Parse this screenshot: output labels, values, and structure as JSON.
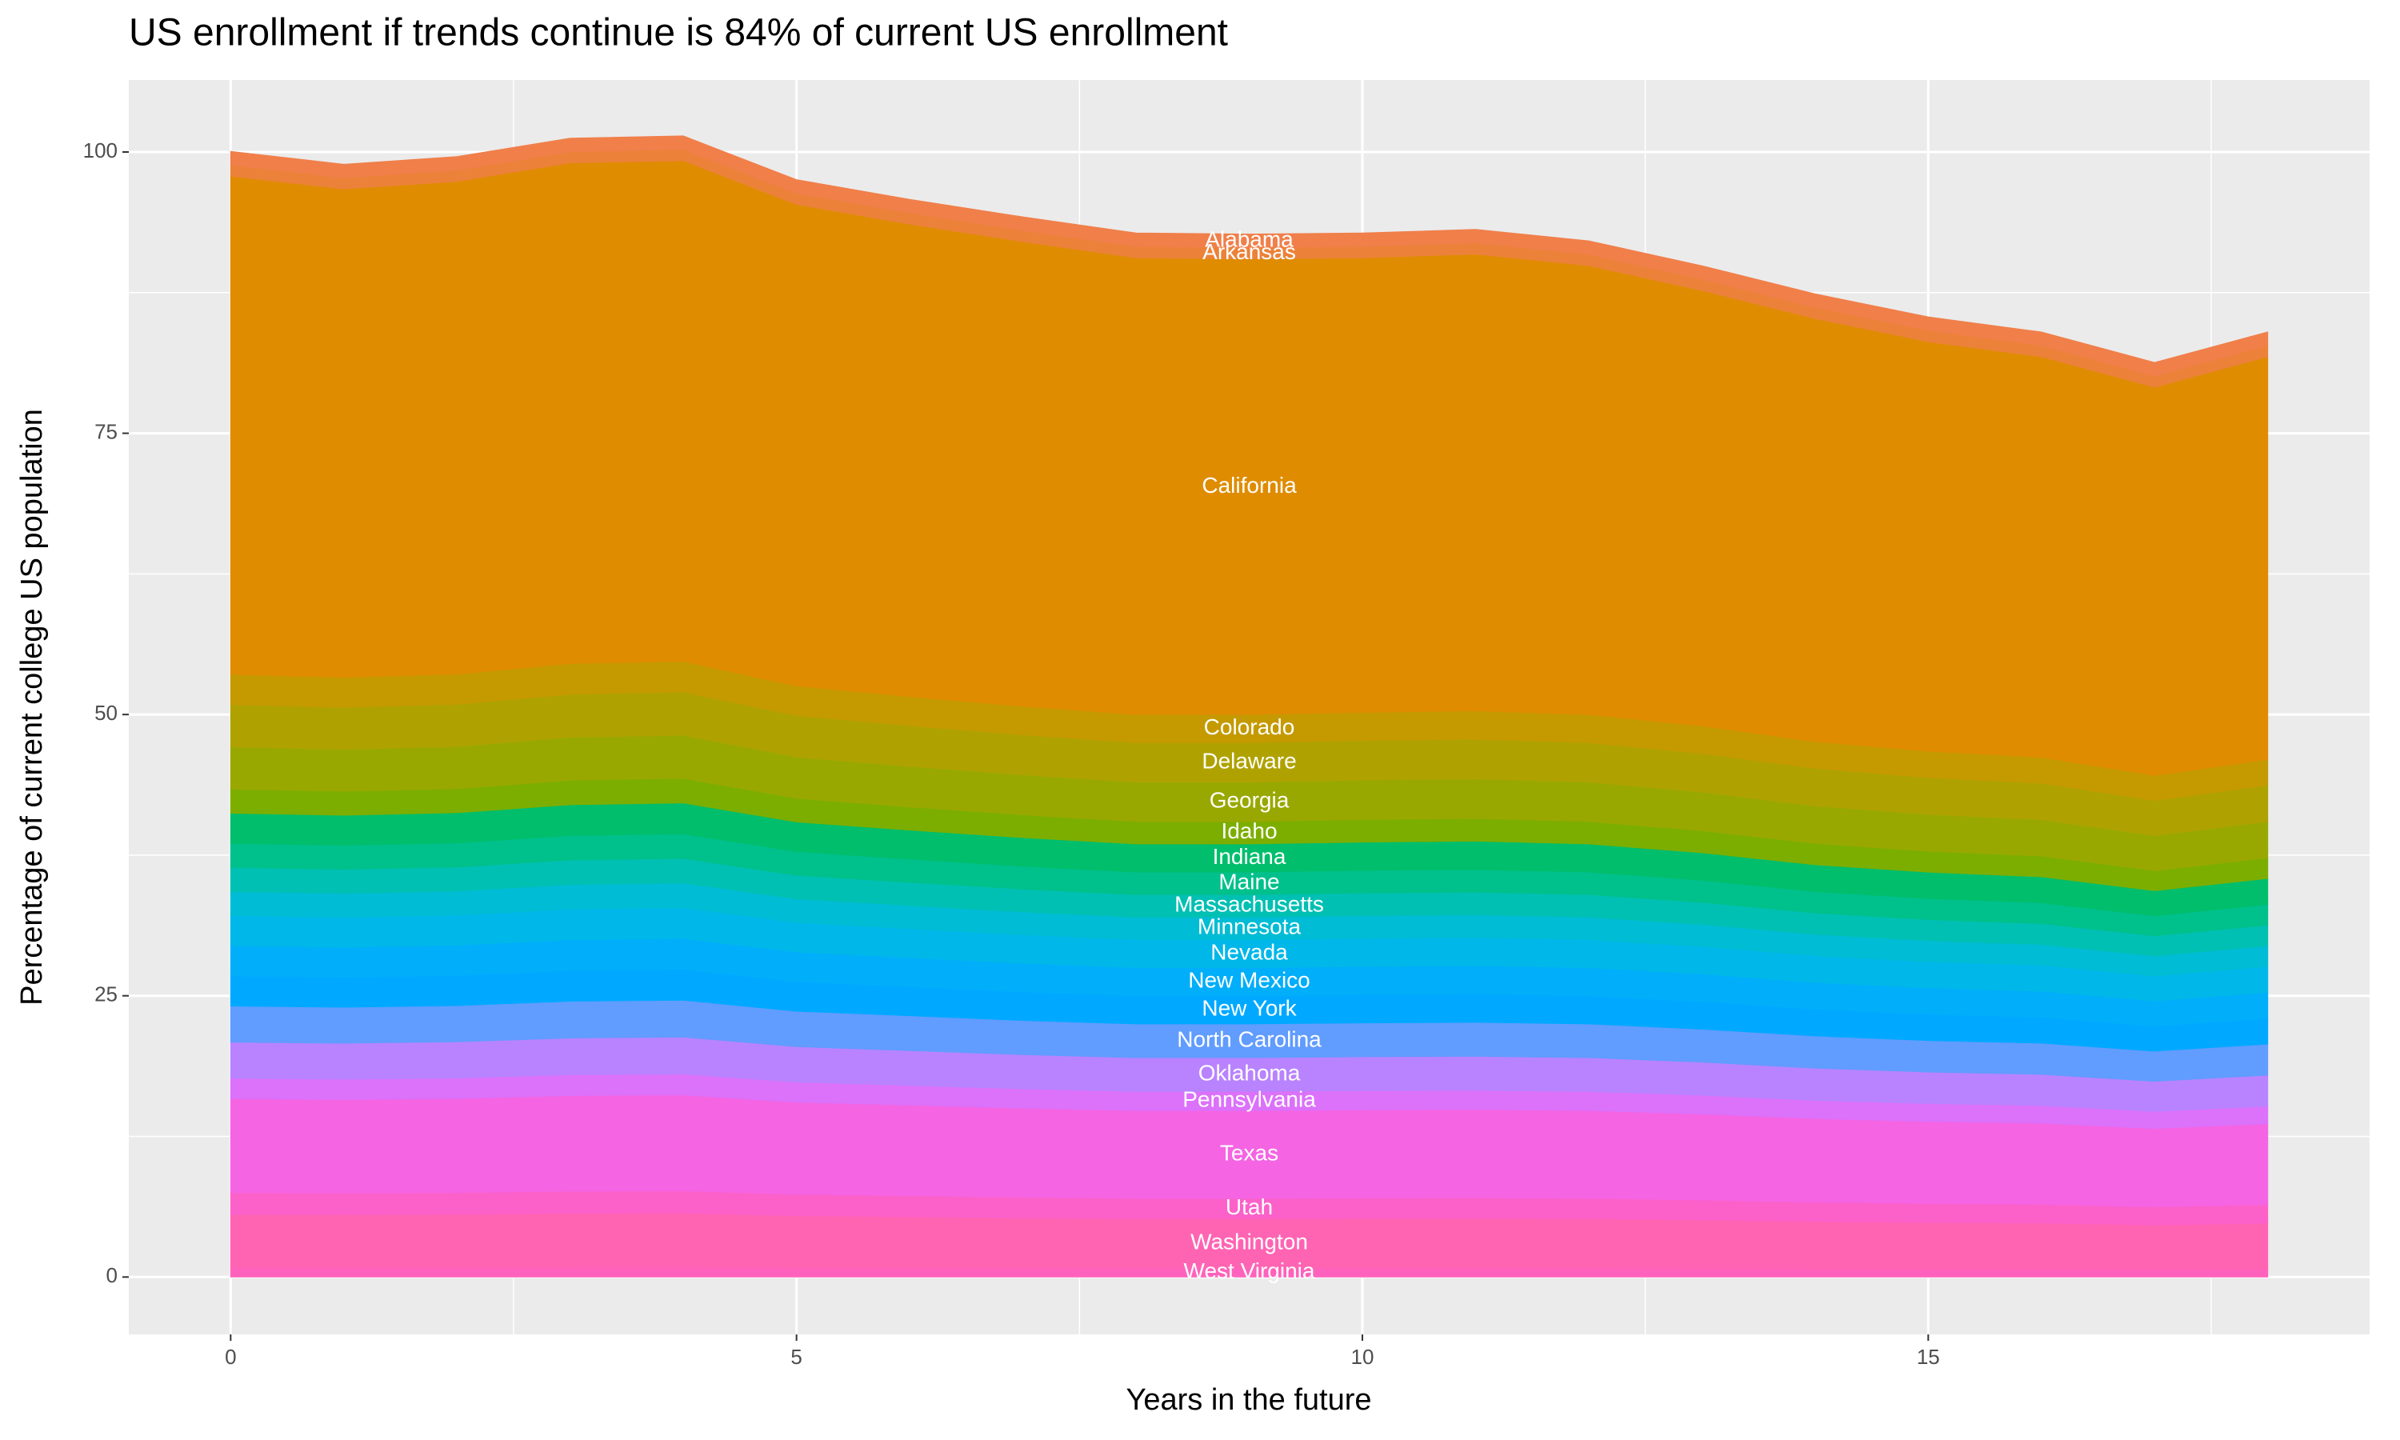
{
  "chart_data": {
    "type": "area",
    "stacked": true,
    "title": "US enrollment if trends continue is 84% of current US enrollment",
    "x_label": "Years in the future",
    "y_label": "Percentage of current college US population",
    "x": [
      0,
      1,
      2,
      3,
      4,
      5,
      6,
      7,
      8,
      9,
      10,
      11,
      12,
      13,
      14,
      15,
      16,
      17,
      18
    ],
    "xlim": [
      -0.9,
      18.9
    ],
    "xticks": [
      0,
      5,
      10,
      15
    ],
    "ylim": [
      -5.1,
      106.4
    ],
    "yticks": [
      0,
      25,
      50,
      75,
      100
    ],
    "grid": true,
    "series": [
      {
        "name": "West Virginia",
        "color": "#FF62BC",
        "values": [
          0.86,
          0.85,
          0.86,
          0.87,
          0.88,
          0.84,
          0.83,
          0.81,
          0.8,
          0.8,
          0.8,
          0.8,
          0.8,
          0.78,
          0.76,
          0.75,
          0.74,
          0.71,
          0.74
        ]
      },
      {
        "name": "Washington",
        "color": "#FF64B3",
        "values": [
          4.71,
          4.69,
          4.72,
          4.8,
          4.81,
          4.62,
          4.54,
          4.46,
          4.4,
          4.4,
          4.42,
          4.43,
          4.4,
          4.31,
          4.19,
          4.11,
          4.07,
          3.92,
          4.05
        ]
      },
      {
        "name": "Utah",
        "color": "#FB61C9",
        "values": [
          1.93,
          1.92,
          1.93,
          1.96,
          1.97,
          1.89,
          1.86,
          1.83,
          1.8,
          1.8,
          1.81,
          1.81,
          1.8,
          1.76,
          1.71,
          1.68,
          1.66,
          1.61,
          1.66
        ]
      },
      {
        "name": "Texas",
        "color": "#F564E3",
        "values": [
          8.35,
          8.31,
          8.36,
          8.5,
          8.53,
          8.19,
          8.05,
          7.91,
          7.8,
          7.8,
          7.83,
          7.85,
          7.8,
          7.64,
          7.43,
          7.29,
          7.21,
          6.96,
          7.18
        ]
      },
      {
        "name": "Pennsylvania",
        "color": "#DC71FA",
        "values": [
          1.82,
          1.81,
          1.82,
          1.85,
          1.86,
          1.79,
          1.75,
          1.72,
          1.7,
          1.7,
          1.71,
          1.71,
          1.7,
          1.67,
          1.62,
          1.59,
          1.57,
          1.52,
          1.56
        ]
      },
      {
        "name": "Oklahoma",
        "color": "#B983FF",
        "values": [
          3.21,
          3.2,
          3.22,
          3.27,
          3.28,
          3.15,
          3.1,
          3.04,
          3,
          3,
          3.01,
          3.02,
          3,
          2.94,
          2.86,
          2.8,
          2.77,
          2.68,
          2.76
        ]
      },
      {
        "name": "North Carolina",
        "color": "#619CFF",
        "values": [
          3.21,
          3.2,
          3.22,
          3.27,
          3.28,
          3.15,
          3.1,
          3.04,
          3,
          3,
          3.01,
          3.02,
          3,
          2.94,
          2.86,
          2.8,
          2.77,
          2.68,
          2.76
        ]
      },
      {
        "name": "New York",
        "color": "#00A9FF",
        "values": [
          2.68,
          2.67,
          2.68,
          2.73,
          2.74,
          2.63,
          2.58,
          2.54,
          2.5,
          2.5,
          2.51,
          2.52,
          2.5,
          2.45,
          2.38,
          2.34,
          2.31,
          2.23,
          2.3
        ]
      },
      {
        "name": "New Mexico",
        "color": "#00AEFA",
        "values": [
          2.68,
          2.67,
          2.68,
          2.73,
          2.74,
          2.63,
          2.58,
          2.54,
          2.5,
          2.5,
          2.51,
          2.52,
          2.5,
          2.45,
          2.38,
          2.34,
          2.31,
          2.23,
          2.3
        ]
      },
      {
        "name": "Nevada",
        "color": "#00B7E9",
        "values": [
          2.68,
          2.67,
          2.68,
          2.73,
          2.74,
          2.63,
          2.58,
          2.54,
          2.5,
          2.5,
          2.51,
          2.52,
          2.5,
          2.45,
          2.38,
          2.34,
          2.31,
          2.23,
          2.3
        ]
      },
      {
        "name": "Minnesota",
        "color": "#00BCD4",
        "values": [
          2.14,
          2.13,
          2.14,
          2.18,
          2.19,
          2.1,
          2.06,
          2.03,
          2,
          2,
          2.01,
          2.01,
          2,
          1.96,
          1.9,
          1.87,
          1.85,
          1.78,
          1.84
        ]
      },
      {
        "name": "Massachusetts",
        "color": "#00C0B3",
        "values": [
          2.14,
          2.13,
          2.14,
          2.18,
          2.19,
          2.1,
          2.06,
          2.03,
          2,
          2,
          2.01,
          2.01,
          2,
          1.96,
          1.9,
          1.87,
          1.85,
          1.78,
          1.84
        ]
      },
      {
        "name": "Maine",
        "color": "#00C08B",
        "values": [
          2.14,
          2.13,
          2.14,
          2.18,
          2.19,
          2.1,
          2.06,
          2.03,
          2,
          2,
          2.01,
          2.01,
          2,
          1.96,
          1.9,
          1.87,
          1.85,
          1.78,
          1.84
        ]
      },
      {
        "name": "Indiana",
        "color": "#00BE6C",
        "values": [
          2.68,
          2.67,
          2.68,
          2.73,
          2.74,
          2.63,
          2.58,
          2.54,
          2.5,
          2.5,
          2.51,
          2.52,
          2.5,
          2.45,
          2.38,
          2.34,
          2.31,
          2.23,
          2.3
        ]
      },
      {
        "name": "Idaho",
        "color": "#7CAE00",
        "values": [
          2.14,
          2.13,
          2.14,
          2.18,
          2.19,
          2.1,
          2.06,
          2.03,
          2,
          2,
          2.01,
          2.01,
          2,
          1.96,
          1.9,
          1.87,
          1.85,
          1.78,
          1.84
        ]
      },
      {
        "name": "Georgia",
        "color": "#99A800",
        "values": [
          3.75,
          3.73,
          3.75,
          3.82,
          3.83,
          3.68,
          3.61,
          3.55,
          3.5,
          3.5,
          3.51,
          3.52,
          3.5,
          3.43,
          3.33,
          3.27,
          3.23,
          3.12,
          3.22
        ]
      },
      {
        "name": "Delaware",
        "color": "#AFA200",
        "values": [
          3.75,
          3.73,
          3.75,
          3.82,
          3.83,
          3.68,
          3.61,
          3.55,
          3.5,
          3.5,
          3.51,
          3.52,
          3.5,
          3.43,
          3.33,
          3.27,
          3.23,
          3.12,
          3.22
        ]
      },
      {
        "name": "Colorado",
        "color": "#C49A00",
        "values": [
          2.68,
          2.67,
          2.68,
          2.73,
          2.74,
          2.63,
          2.58,
          2.54,
          2.5,
          2.5,
          2.51,
          2.52,
          2.5,
          2.45,
          2.38,
          2.34,
          2.31,
          2.23,
          2.3
        ]
      },
      {
        "name": "California",
        "color": "#DF8C00",
        "values": [
          44.3,
          43.4,
          43.8,
          44.5,
          44.5,
          42.8,
          42.0,
          41.3,
          40.6,
          40.5,
          40.4,
          40.6,
          39.9,
          38.7,
          37.6,
          36.4,
          35.6,
          34.5,
          35.8
        ]
      },
      {
        "name": "Arkansas",
        "color": "#EC8239",
        "values": [
          1,
          1,
          1,
          1,
          1,
          1,
          1,
          1,
          1,
          1,
          1,
          1,
          1,
          1,
          1,
          1,
          1,
          1,
          1
        ]
      },
      {
        "name": "Alabama",
        "color": "#F07F4A",
        "values": [
          1.2,
          1.2,
          1.2,
          1.2,
          1.2,
          1.2,
          1.2,
          1.2,
          1.2,
          1.2,
          1.2,
          1.2,
          1.2,
          1.2,
          1.2,
          1.2,
          1.2,
          1.2,
          1.2
        ]
      }
    ]
  }
}
